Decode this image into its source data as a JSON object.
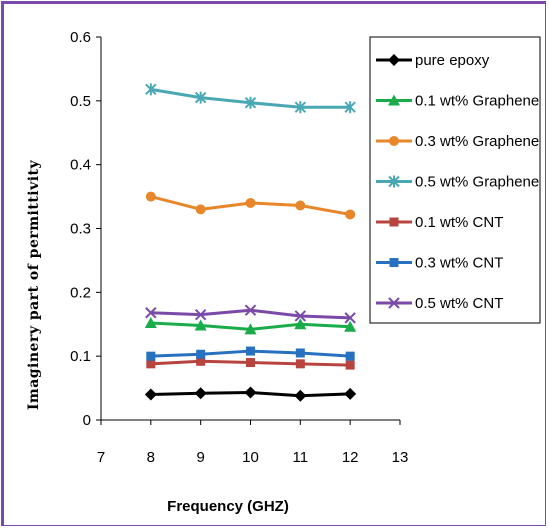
{
  "chart_data": {
    "type": "line",
    "xlabel": "Frequency (GHZ)",
    "ylabel": "Imaginery part of  permittivity",
    "xlim": [
      7,
      13
    ],
    "ylim": [
      0,
      0.6
    ],
    "x_ticks": [
      7,
      8,
      9,
      10,
      11,
      12,
      13
    ],
    "y_ticks": [
      "0",
      "0.1",
      "0.2",
      "0.3",
      "0.4",
      "0.5",
      "0.6"
    ],
    "grid": false,
    "legend_position": "right",
    "x": [
      8,
      9,
      10,
      11,
      12
    ],
    "series": [
      {
        "name": "pure epoxy",
        "values": [
          0.04,
          0.042,
          0.043,
          0.038,
          0.041
        ],
        "color": "#000000",
        "marker": "diamond"
      },
      {
        "name": "0.1 wt% Graphene",
        "values": [
          0.152,
          0.148,
          0.142,
          0.15,
          0.146
        ],
        "color": "#1aab4a",
        "marker": "triangle"
      },
      {
        "name": "0.3 wt% Graphene",
        "values": [
          0.35,
          0.33,
          0.34,
          0.336,
          0.322
        ],
        "color": "#e8862a",
        "marker": "circle"
      },
      {
        "name": "0.5 wt% Graphene",
        "values": [
          0.518,
          0.505,
          0.497,
          0.49,
          0.49
        ],
        "color": "#4aa8b5",
        "marker": "asterisk"
      },
      {
        "name": "0.1 wt% CNT",
        "values": [
          0.088,
          0.092,
          0.09,
          0.088,
          0.086
        ],
        "color": "#b8443f",
        "marker": "square"
      },
      {
        "name": "0.3 wt% CNT",
        "values": [
          0.1,
          0.103,
          0.108,
          0.105,
          0.1
        ],
        "color": "#2870c0",
        "marker": "square"
      },
      {
        "name": "0.5  wt% CNT",
        "values": [
          0.168,
          0.165,
          0.172,
          0.163,
          0.16
        ],
        "color": "#7b4aa8",
        "marker": "x"
      }
    ]
  }
}
